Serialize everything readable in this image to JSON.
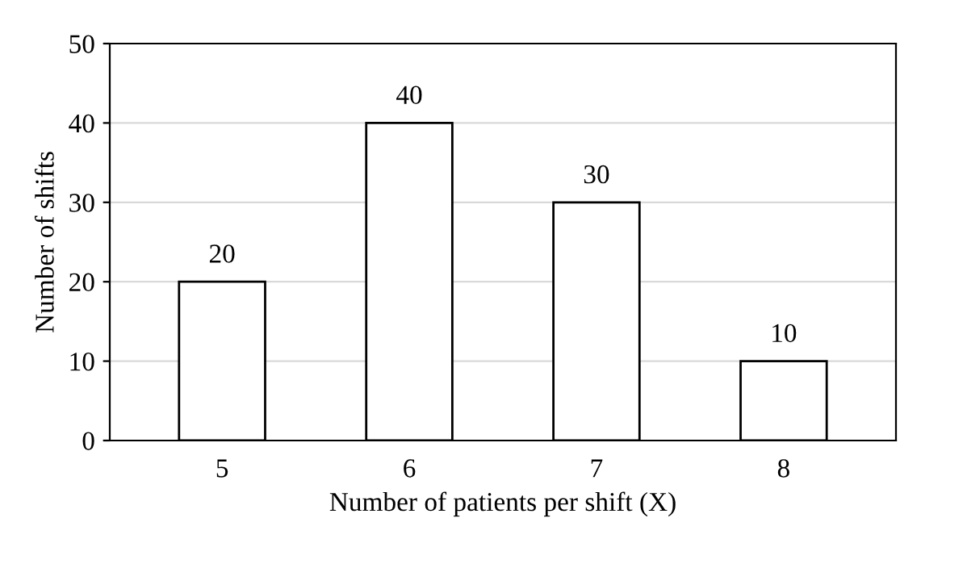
{
  "chart_data": {
    "type": "bar",
    "xlabel": "Number of patients per shift (X)",
    "ylabel": "Number of shifts",
    "categories": [
      "5",
      "6",
      "7",
      "8"
    ],
    "values": [
      20,
      40,
      30,
      10
    ],
    "color": "#ffffff",
    "ylim": [
      0,
      50
    ],
    "yticks": [
      0,
      10,
      20,
      30,
      40,
      50
    ],
    "grid": "y",
    "data_labels": true
  }
}
